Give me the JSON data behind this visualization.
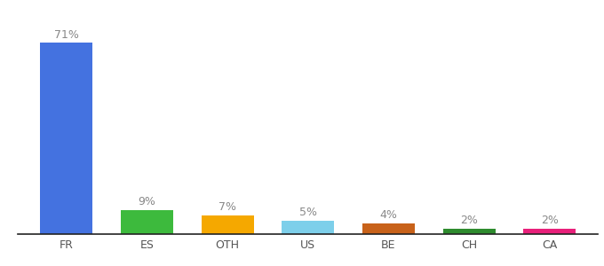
{
  "categories": [
    "FR",
    "ES",
    "OTH",
    "US",
    "BE",
    "CH",
    "CA"
  ],
  "values": [
    71,
    9,
    7,
    5,
    4,
    2,
    2
  ],
  "bar_colors": [
    "#4472e0",
    "#3dba3d",
    "#f5a800",
    "#7dcfea",
    "#c8621a",
    "#2e8b2e",
    "#e8207a"
  ],
  "ylim": [
    0,
    80
  ],
  "background_color": "#ffffff",
  "label_fontsize": 9,
  "tick_fontsize": 9,
  "label_color": "#888888",
  "tick_color": "#555555",
  "spine_color": "#222222"
}
